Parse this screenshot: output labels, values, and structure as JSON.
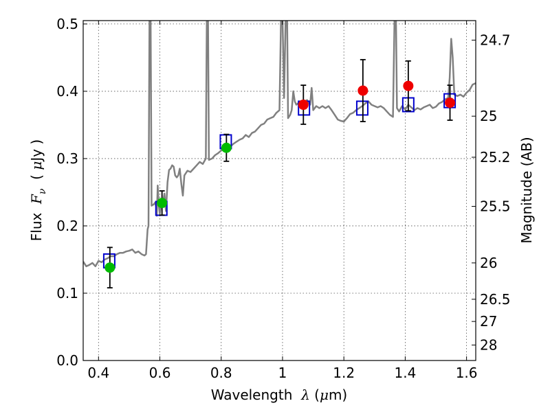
{
  "chart_data": {
    "type": "scatter",
    "xlabel_parts": [
      "Wavelength  ",
      "λ",
      " (",
      "μ",
      "m)"
    ],
    "ylabel_parts": [
      "Flux  ",
      "F",
      "ν",
      "  ( ",
      "μ",
      "Jy )"
    ],
    "y2label": "Magnitude (AB)",
    "xlim": [
      0.35,
      1.63
    ],
    "ylim": [
      0.0,
      0.505
    ],
    "grid": true,
    "x_ticks": [
      0.4,
      0.6,
      0.8,
      1.0,
      1.2,
      1.4,
      1.6
    ],
    "x_tick_labels": [
      "0.4",
      "0.6",
      "0.8",
      "1",
      "1.2",
      "1.4",
      "1.6"
    ],
    "y_ticks": [
      0.0,
      0.1,
      0.2,
      0.3,
      0.4,
      0.5
    ],
    "y_tick_labels": [
      "0.0",
      "0.1",
      "0.2",
      "0.3",
      "0.4",
      "0.5"
    ],
    "y2_ticks": [
      {
        "label": "24.7",
        "flux": 0.476
      },
      {
        "label": "25",
        "flux": 0.363
      },
      {
        "label": "25.2",
        "flux": 0.302
      },
      {
        "label": "25.5",
        "flux": 0.229
      },
      {
        "label": "26",
        "flux": 0.145
      },
      {
        "label": "26.5",
        "flux": 0.091
      },
      {
        "label": "27",
        "flux": 0.058
      },
      {
        "label": "28",
        "flux": 0.023
      }
    ],
    "colors": {
      "model": "#808080",
      "model_box": "#0000cc",
      "optical": "#00bb00",
      "nir": "#ee0000",
      "errorbar": "#000000"
    },
    "series": [
      {
        "style": "line",
        "color": "#808080",
        "points": [
          [
            0.35,
            0.147
          ],
          [
            0.36,
            0.14
          ],
          [
            0.37,
            0.142
          ],
          [
            0.38,
            0.145
          ],
          [
            0.39,
            0.14
          ],
          [
            0.4,
            0.148
          ],
          [
            0.41,
            0.146
          ],
          [
            0.42,
            0.15
          ],
          [
            0.43,
            0.152
          ],
          [
            0.44,
            0.155
          ],
          [
            0.45,
            0.155
          ],
          [
            0.46,
            0.158
          ],
          [
            0.47,
            0.16
          ],
          [
            0.48,
            0.16
          ],
          [
            0.49,
            0.162
          ],
          [
            0.5,
            0.163
          ],
          [
            0.51,
            0.165
          ],
          [
            0.52,
            0.16
          ],
          [
            0.53,
            0.162
          ],
          [
            0.54,
            0.158
          ],
          [
            0.55,
            0.156
          ],
          [
            0.555,
            0.158
          ],
          [
            0.56,
            0.195
          ],
          [
            0.563,
            0.2
          ],
          [
            0.566,
            0.505
          ],
          [
            0.57,
            0.505
          ],
          [
            0.573,
            0.23
          ],
          [
            0.58,
            0.232
          ],
          [
            0.585,
            0.235
          ],
          [
            0.588,
            0.228
          ],
          [
            0.59,
            0.215
          ],
          [
            0.593,
            0.26
          ],
          [
            0.596,
            0.233
          ],
          [
            0.6,
            0.218
          ],
          [
            0.605,
            0.24
          ],
          [
            0.61,
            0.235
          ],
          [
            0.615,
            0.248
          ],
          [
            0.62,
            0.222
          ],
          [
            0.625,
            0.265
          ],
          [
            0.63,
            0.283
          ],
          [
            0.635,
            0.285
          ],
          [
            0.64,
            0.29
          ],
          [
            0.645,
            0.288
          ],
          [
            0.65,
            0.275
          ],
          [
            0.655,
            0.272
          ],
          [
            0.66,
            0.275
          ],
          [
            0.665,
            0.285
          ],
          [
            0.67,
            0.262
          ],
          [
            0.675,
            0.245
          ],
          [
            0.68,
            0.275
          ],
          [
            0.69,
            0.282
          ],
          [
            0.7,
            0.28
          ],
          [
            0.71,
            0.285
          ],
          [
            0.72,
            0.29
          ],
          [
            0.73,
            0.295
          ],
          [
            0.74,
            0.292
          ],
          [
            0.75,
            0.3
          ],
          [
            0.753,
            0.505
          ],
          [
            0.757,
            0.505
          ],
          [
            0.76,
            0.298
          ],
          [
            0.77,
            0.3
          ],
          [
            0.78,
            0.305
          ],
          [
            0.79,
            0.308
          ],
          [
            0.8,
            0.312
          ],
          [
            0.81,
            0.315
          ],
          [
            0.82,
            0.313
          ],
          [
            0.83,
            0.318
          ],
          [
            0.84,
            0.322
          ],
          [
            0.85,
            0.325
          ],
          [
            0.86,
            0.328
          ],
          [
            0.87,
            0.33
          ],
          [
            0.88,
            0.335
          ],
          [
            0.89,
            0.332
          ],
          [
            0.9,
            0.338
          ],
          [
            0.91,
            0.34
          ],
          [
            0.92,
            0.345
          ],
          [
            0.93,
            0.35
          ],
          [
            0.94,
            0.352
          ],
          [
            0.95,
            0.358
          ],
          [
            0.96,
            0.36
          ],
          [
            0.97,
            0.362
          ],
          [
            0.98,
            0.368
          ],
          [
            0.99,
            0.372
          ],
          [
            0.995,
            0.505
          ],
          [
            1.0,
            0.505
          ],
          [
            1.005,
            0.39
          ],
          [
            1.01,
            0.505
          ],
          [
            1.015,
            0.505
          ],
          [
            1.018,
            0.36
          ],
          [
            1.025,
            0.365
          ],
          [
            1.03,
            0.372
          ],
          [
            1.035,
            0.4
          ],
          [
            1.04,
            0.385
          ],
          [
            1.045,
            0.38
          ],
          [
            1.05,
            0.382
          ],
          [
            1.06,
            0.385
          ],
          [
            1.07,
            0.383
          ],
          [
            1.08,
            0.387
          ],
          [
            1.09,
            0.38
          ],
          [
            1.095,
            0.405
          ],
          [
            1.1,
            0.372
          ],
          [
            1.11,
            0.378
          ],
          [
            1.12,
            0.375
          ],
          [
            1.13,
            0.378
          ],
          [
            1.14,
            0.375
          ],
          [
            1.15,
            0.378
          ],
          [
            1.16,
            0.372
          ],
          [
            1.17,
            0.365
          ],
          [
            1.18,
            0.358
          ],
          [
            1.19,
            0.356
          ],
          [
            1.2,
            0.355
          ],
          [
            1.21,
            0.36
          ],
          [
            1.22,
            0.366
          ],
          [
            1.23,
            0.368
          ],
          [
            1.24,
            0.372
          ],
          [
            1.25,
            0.375
          ],
          [
            1.26,
            0.378
          ],
          [
            1.27,
            0.382
          ],
          [
            1.28,
            0.385
          ],
          [
            1.29,
            0.38
          ],
          [
            1.3,
            0.378
          ],
          [
            1.31,
            0.376
          ],
          [
            1.32,
            0.378
          ],
          [
            1.33,
            0.375
          ],
          [
            1.34,
            0.37
          ],
          [
            1.35,
            0.365
          ],
          [
            1.36,
            0.362
          ],
          [
            1.365,
            0.505
          ],
          [
            1.37,
            0.505
          ],
          [
            1.373,
            0.375
          ],
          [
            1.38,
            0.37
          ],
          [
            1.39,
            0.378
          ],
          [
            1.4,
            0.373
          ],
          [
            1.41,
            0.38
          ],
          [
            1.42,
            0.376
          ],
          [
            1.43,
            0.372
          ],
          [
            1.44,
            0.375
          ],
          [
            1.45,
            0.373
          ],
          [
            1.46,
            0.376
          ],
          [
            1.47,
            0.378
          ],
          [
            1.48,
            0.38
          ],
          [
            1.49,
            0.375
          ],
          [
            1.5,
            0.377
          ],
          [
            1.51,
            0.382
          ],
          [
            1.52,
            0.384
          ],
          [
            1.53,
            0.388
          ],
          [
            1.54,
            0.39
          ],
          [
            1.545,
            0.42
          ],
          [
            1.55,
            0.478
          ],
          [
            1.555,
            0.45
          ],
          [
            1.56,
            0.395
          ],
          [
            1.57,
            0.393
          ],
          [
            1.58,
            0.395
          ],
          [
            1.59,
            0.392
          ],
          [
            1.6,
            0.398
          ],
          [
            1.61,
            0.402
          ],
          [
            1.62,
            0.41
          ],
          [
            1.63,
            0.412
          ]
        ]
      },
      {
        "style": "open-square",
        "color": "#0000cc",
        "points": [
          [
            0.435,
            0.148
          ],
          [
            0.605,
            0.226
          ],
          [
            0.815,
            0.325
          ],
          [
            1.07,
            0.375
          ],
          [
            1.26,
            0.375
          ],
          [
            1.41,
            0.38
          ],
          [
            1.545,
            0.386
          ]
        ]
      },
      {
        "style": "filled-circle",
        "color": "#00bb00",
        "points": [
          {
            "x": 0.437,
            "y": 0.138,
            "err": 0.03
          },
          {
            "x": 0.607,
            "y": 0.234,
            "err": 0.018
          },
          {
            "x": 0.817,
            "y": 0.316,
            "err": 0.02
          }
        ]
      },
      {
        "style": "filled-circle",
        "color": "#ee0000",
        "points": [
          {
            "x": 1.068,
            "y": 0.38,
            "err": 0.029
          },
          {
            "x": 1.262,
            "y": 0.401,
            "err": 0.046
          },
          {
            "x": 1.41,
            "y": 0.408,
            "err": 0.037
          },
          {
            "x": 1.546,
            "y": 0.383,
            "err": 0.026
          }
        ]
      }
    ]
  }
}
